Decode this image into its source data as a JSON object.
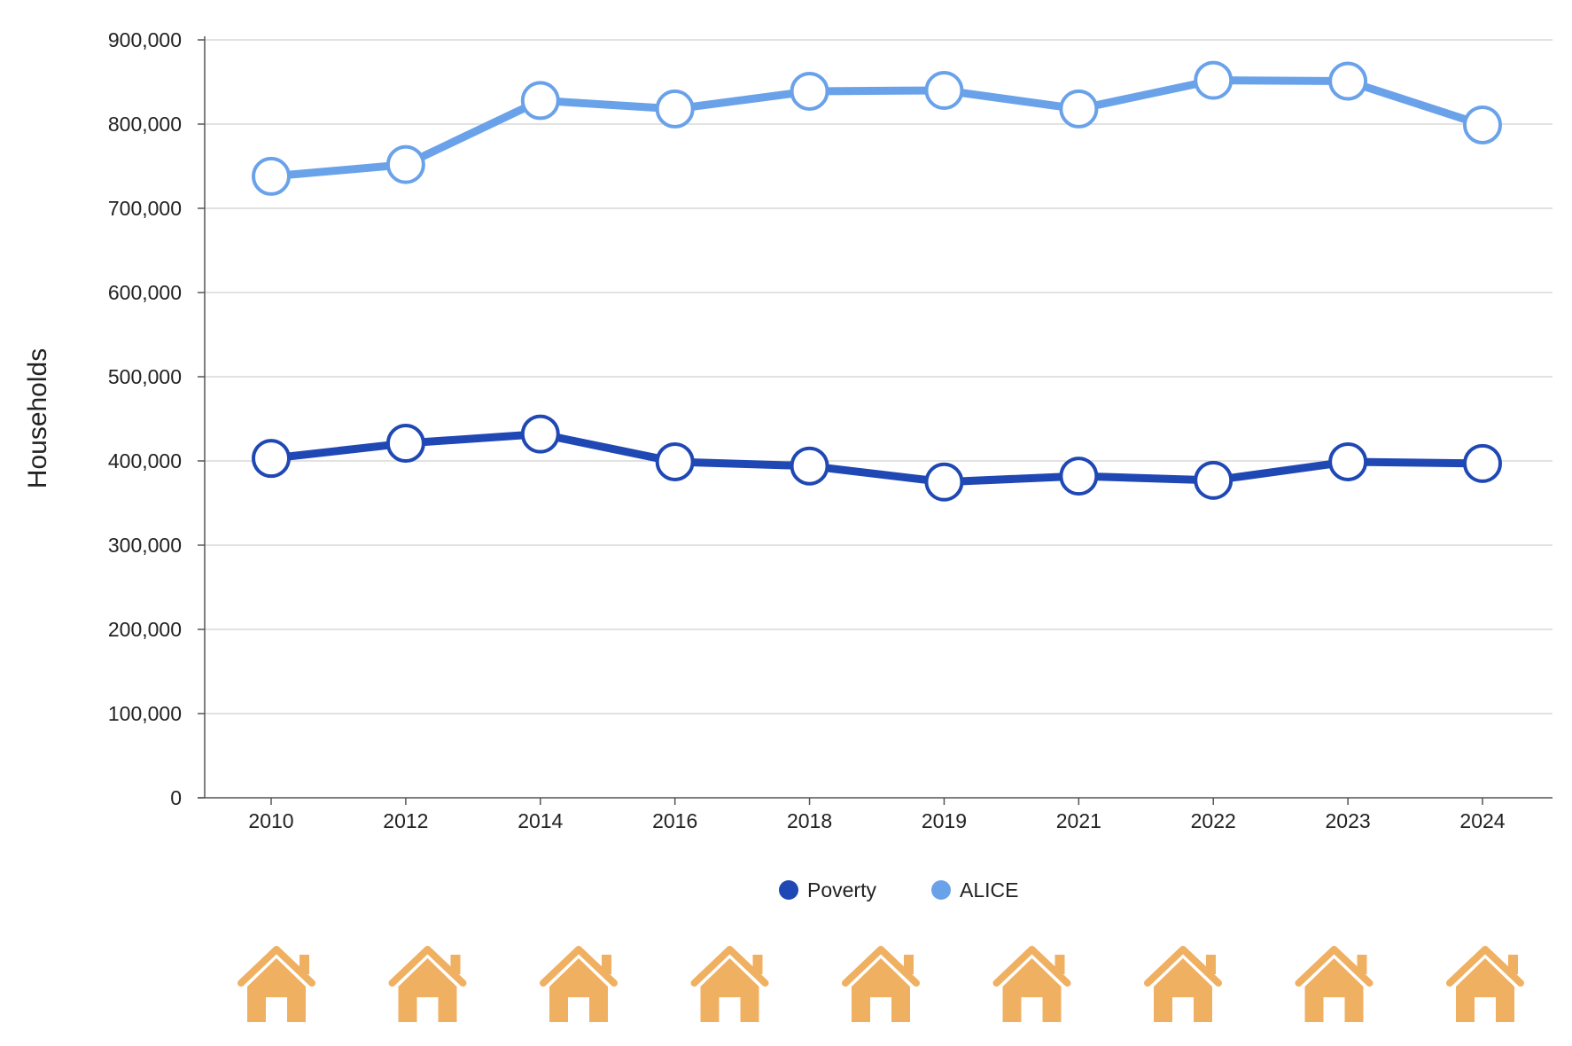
{
  "chart_data": {
    "type": "line",
    "categories": [
      "2010",
      "2012",
      "2014",
      "2016",
      "2018",
      "2019",
      "2021",
      "2022",
      "2023",
      "2024"
    ],
    "series": [
      {
        "name": "Poverty",
        "color": "#1f48b4",
        "values": [
          403000,
          421000,
          432000,
          399000,
          394000,
          375000,
          382000,
          377000,
          399000,
          397000
        ]
      },
      {
        "name": "ALICE",
        "color": "#6aa2ea",
        "values": [
          738000,
          752000,
          828000,
          818000,
          839000,
          840000,
          818000,
          852000,
          851000,
          799000
        ]
      }
    ],
    "title": "",
    "xlabel": "",
    "ylabel": "Households",
    "ylim": [
      0,
      900000
    ],
    "yticks": [
      "0",
      "100,000",
      "200,000",
      "300,000",
      "400,000",
      "500,000",
      "600,000",
      "700,000",
      "800,000",
      "900,000"
    ],
    "grid": true,
    "legend": "bottom-center",
    "decoration": {
      "icon": "house-icon",
      "count": 9,
      "color": "#f0b062"
    }
  }
}
